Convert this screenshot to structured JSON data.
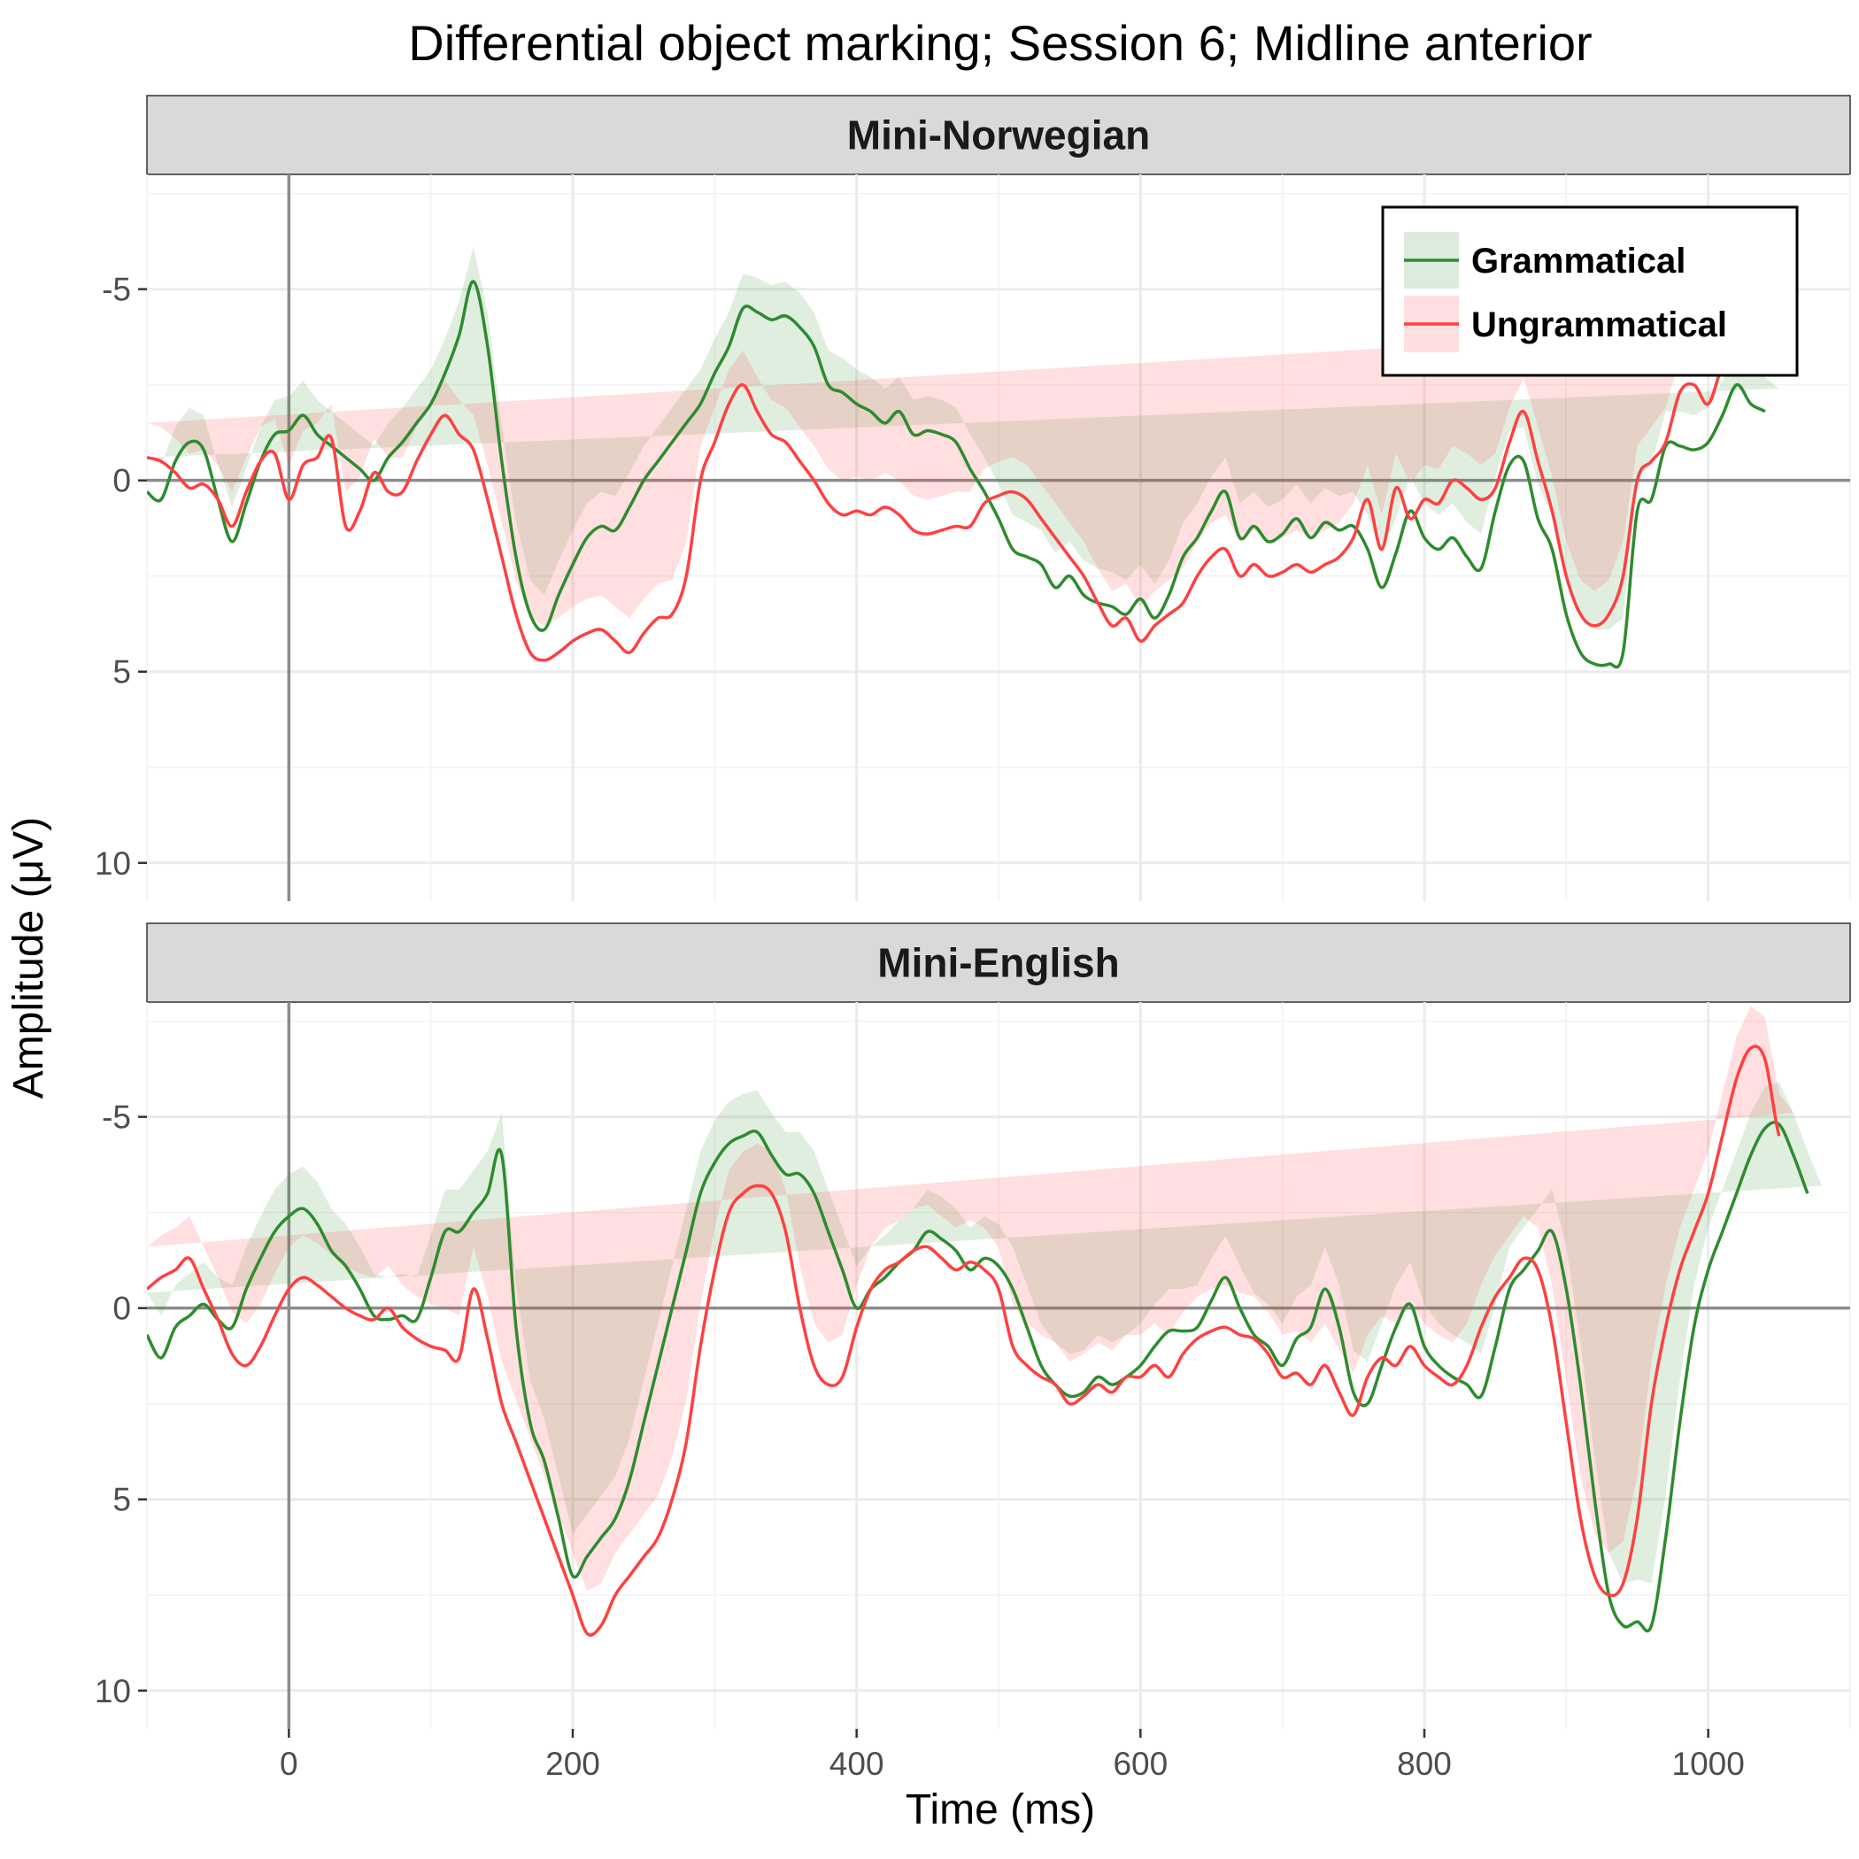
{
  "chart_data": {
    "type": "line",
    "title": "Differential object marking; Session 6; Midline anterior",
    "xlabel": "Time (ms)",
    "ylabel": "Amplitude (μV)",
    "xlim": [
      -100,
      1100
    ],
    "ylim_reversed": [
      -8,
      11
    ],
    "y_axis_reversed": true,
    "x_ticks": [
      0,
      200,
      400,
      600,
      800,
      1000
    ],
    "y_ticks": [
      -5,
      0,
      5,
      10
    ],
    "y_tick_labels": [
      "-5",
      "0",
      "5",
      "10"
    ],
    "grid": true,
    "legend_position": "top-right",
    "colors": {
      "Grammatical": "#2e8b2e",
      "Ungrammatical": "#ff4040"
    },
    "series_names": [
      "Grammatical",
      "Ungrammatical"
    ],
    "panels": [
      {
        "name": "Mini-Norwegian",
        "x": [
          -100,
          -90,
          -80,
          -70,
          -60,
          -50,
          -40,
          -30,
          -20,
          -10,
          0,
          10,
          20,
          30,
          40,
          50,
          60,
          70,
          80,
          90,
          100,
          110,
          120,
          130,
          140,
          150,
          160,
          170,
          180,
          190,
          200,
          210,
          220,
          230,
          240,
          250,
          260,
          270,
          280,
          290,
          300,
          310,
          320,
          330,
          340,
          350,
          360,
          370,
          380,
          390,
          400,
          410,
          420,
          430,
          440,
          450,
          460,
          470,
          480,
          490,
          500,
          510,
          520,
          530,
          540,
          550,
          560,
          570,
          580,
          590,
          600,
          610,
          620,
          630,
          640,
          650,
          660,
          670,
          680,
          690,
          700,
          710,
          720,
          730,
          740,
          750,
          760,
          770,
          780,
          790,
          800,
          810,
          820,
          830,
          840,
          850,
          860,
          870,
          880,
          890,
          900,
          910,
          920,
          930,
          940,
          950,
          960,
          970,
          980,
          990,
          1000,
          1010,
          1020,
          1030,
          1040,
          1050,
          1060,
          1070,
          1080,
          1090,
          1100
        ],
        "series": [
          {
            "name": "Grammatical",
            "se": 0.9,
            "values": [
              0.3,
              0.5,
              -0.5,
              -1.0,
              -0.8,
              0.5,
              1.6,
              0.6,
              -0.5,
              -1.2,
              -1.3,
              -1.7,
              -1.2,
              -0.9,
              -0.6,
              -0.3,
              0.0,
              -0.6,
              -1.0,
              -1.5,
              -2.0,
              -2.8,
              -3.8,
              -5.2,
              -3.5,
              -0.5,
              2.0,
              3.5,
              3.9,
              3.0,
              2.2,
              1.5,
              1.2,
              1.3,
              0.7,
              0.0,
              -0.5,
              -1.0,
              -1.5,
              -2.0,
              -2.8,
              -3.5,
              -4.5,
              -4.4,
              -4.2,
              -4.3,
              -4.0,
              -3.5,
              -2.5,
              -2.3,
              -2.0,
              -1.8,
              -1.5,
              -1.8,
              -1.2,
              -1.3,
              -1.2,
              -1.0,
              -0.3,
              0.3,
              1.0,
              1.8,
              2.0,
              2.2,
              2.8,
              2.5,
              3.0,
              3.2,
              3.3,
              3.5,
              3.1,
              3.6,
              3.0,
              2.0,
              1.5,
              0.8,
              0.3,
              1.5,
              1.2,
              1.6,
              1.4,
              1.0,
              1.5,
              1.1,
              1.3,
              1.2,
              1.8,
              2.8,
              1.9,
              0.8,
              1.5,
              1.8,
              1.5,
              2.0,
              2.3,
              0.8,
              -0.4,
              -0.5,
              1.0,
              1.8,
              3.5,
              4.5,
              4.8,
              4.8,
              4.5,
              0.8,
              0.5,
              -0.9,
              -0.9,
              -0.8,
              -1.0,
              -1.7,
              -2.5,
              -2.0,
              -1.8,
              -1.5
            ]
          },
          {
            "name": "Ungrammatical",
            "se": 0.9,
            "values": [
              -0.6,
              -0.5,
              -0.2,
              0.2,
              0.1,
              0.5,
              1.2,
              0.3,
              -0.5,
              -0.7,
              0.5,
              -0.4,
              -0.6,
              -1.1,
              1.2,
              0.8,
              -0.2,
              0.3,
              0.3,
              -0.5,
              -1.2,
              -1.7,
              -1.2,
              -0.8,
              0.5,
              2.0,
              3.5,
              4.5,
              4.7,
              4.5,
              4.2,
              4.0,
              3.9,
              4.2,
              4.5,
              4.0,
              3.6,
              3.5,
              2.5,
              0.0,
              -1.0,
              -2.0,
              -2.5,
              -1.8,
              -1.2,
              -1.0,
              -0.5,
              0.0,
              0.6,
              0.9,
              0.8,
              0.9,
              0.7,
              0.9,
              1.3,
              1.4,
              1.3,
              1.2,
              1.2,
              0.6,
              0.4,
              0.3,
              0.5,
              1.0,
              1.5,
              2.0,
              2.5,
              3.2,
              3.8,
              3.6,
              4.2,
              3.8,
              3.5,
              3.2,
              2.5,
              2.0,
              1.8,
              2.5,
              2.2,
              2.5,
              2.4,
              2.2,
              2.4,
              2.2,
              2.0,
              1.5,
              0.5,
              1.8,
              0.2,
              1.0,
              0.5,
              0.6,
              0.0,
              0.2,
              0.5,
              0.2,
              -1.0,
              -1.8,
              -0.5,
              0.8,
              2.5,
              3.5,
              3.8,
              3.5,
              2.5,
              0.0,
              -0.5,
              -1.0,
              -2.3,
              -2.5,
              -2.0,
              -3.0,
              -3.5,
              -4.0,
              -5.2,
              -4.5,
              -3.2
            ]
          }
        ]
      },
      {
        "name": "Mini-English",
        "x": [
          -100,
          -90,
          -80,
          -70,
          -60,
          -50,
          -40,
          -30,
          -20,
          -10,
          0,
          10,
          20,
          30,
          40,
          50,
          60,
          70,
          80,
          90,
          100,
          110,
          120,
          130,
          140,
          150,
          160,
          170,
          180,
          190,
          200,
          210,
          220,
          230,
          240,
          250,
          260,
          270,
          280,
          290,
          300,
          310,
          320,
          330,
          340,
          350,
          360,
          370,
          380,
          390,
          400,
          410,
          420,
          430,
          440,
          450,
          460,
          470,
          480,
          490,
          500,
          510,
          520,
          530,
          540,
          550,
          560,
          570,
          580,
          590,
          600,
          610,
          620,
          630,
          640,
          650,
          660,
          670,
          680,
          690,
          700,
          710,
          720,
          730,
          740,
          750,
          760,
          770,
          780,
          790,
          800,
          810,
          820,
          830,
          840,
          850,
          860,
          870,
          880,
          890,
          900,
          910,
          920,
          930,
          940,
          950,
          960,
          970,
          980,
          990,
          1000,
          1010,
          1020,
          1030,
          1040,
          1050,
          1060,
          1070,
          1080,
          1090,
          1100
        ],
        "series": [
          {
            "name": "Grammatical",
            "se": 1.1,
            "values": [
              0.7,
              1.3,
              0.5,
              0.2,
              -0.1,
              0.3,
              0.5,
              -0.5,
              -1.3,
              -2.0,
              -2.4,
              -2.6,
              -2.2,
              -1.5,
              -1.1,
              -0.5,
              0.2,
              0.3,
              0.2,
              0.3,
              -0.8,
              -2.0,
              -2.0,
              -2.5,
              -3.0,
              -4.0,
              0.5,
              3.0,
              4.0,
              5.5,
              7.0,
              6.5,
              6.0,
              5.5,
              4.5,
              3.0,
              1.5,
              0.0,
              -1.5,
              -3.0,
              -3.8,
              -4.3,
              -4.5,
              -4.6,
              -4.0,
              -3.5,
              -3.5,
              -3.0,
              -2.0,
              -1.0,
              0.0,
              -0.5,
              -0.8,
              -1.2,
              -1.5,
              -2.0,
              -1.8,
              -1.5,
              -1.0,
              -1.3,
              -1.1,
              -0.5,
              0.5,
              1.5,
              2.0,
              2.3,
              2.2,
              1.8,
              2.0,
              1.8,
              1.5,
              1.0,
              0.6,
              0.6,
              0.5,
              -0.2,
              -0.8,
              0.0,
              0.7,
              1.0,
              1.5,
              0.8,
              0.5,
              -0.5,
              0.5,
              2.2,
              2.5,
              1.5,
              0.5,
              -0.1,
              1.0,
              1.5,
              1.8,
              2.0,
              2.3,
              1.0,
              -0.5,
              -1.0,
              -1.5,
              -2.0,
              -0.5,
              2.0,
              5.0,
              7.5,
              8.3,
              8.2,
              8.3,
              6.0,
              3.0,
              0.5,
              -1.0,
              -2.0,
              -3.0,
              -4.0,
              -4.7,
              -4.8,
              -4.0,
              -3.0,
              -2.1
            ]
          },
          {
            "name": "Ungrammatical",
            "se": 1.1,
            "values": [
              -0.5,
              -0.8,
              -1.0,
              -1.3,
              -0.5,
              0.3,
              1.2,
              1.5,
              1.0,
              0.2,
              -0.5,
              -0.8,
              -0.6,
              -0.3,
              0.0,
              0.2,
              0.3,
              0.0,
              0.5,
              0.8,
              1.0,
              1.1,
              1.3,
              -0.5,
              0.8,
              2.5,
              3.5,
              4.5,
              5.5,
              6.5,
              7.5,
              8.5,
              8.3,
              7.5,
              7.0,
              6.5,
              6.0,
              5.0,
              3.5,
              1.0,
              -1.0,
              -2.5,
              -3.0,
              -3.2,
              -3.0,
              -2.0,
              0.0,
              1.5,
              2.0,
              1.8,
              0.5,
              -0.5,
              -1.0,
              -1.2,
              -1.5,
              -1.6,
              -1.3,
              -1.0,
              -1.2,
              -1.0,
              -0.5,
              1.0,
              1.5,
              1.8,
              2.0,
              2.5,
              2.3,
              2.0,
              2.2,
              1.8,
              1.8,
              1.5,
              1.8,
              1.2,
              0.8,
              0.6,
              0.5,
              0.7,
              0.8,
              1.2,
              1.8,
              1.7,
              2.0,
              1.5,
              2.2,
              2.8,
              1.8,
              1.3,
              1.5,
              1.0,
              1.5,
              1.8,
              2.0,
              1.5,
              0.5,
              -0.3,
              -0.8,
              -1.3,
              -1.0,
              0.5,
              3.0,
              5.5,
              7.0,
              7.5,
              7.2,
              5.5,
              2.5,
              0.5,
              -1.0,
              -2.0,
              -3.0,
              -4.5,
              -6.0,
              -6.8,
              -6.5,
              -4.5,
              -4.0
            ]
          }
        ]
      }
    ]
  }
}
